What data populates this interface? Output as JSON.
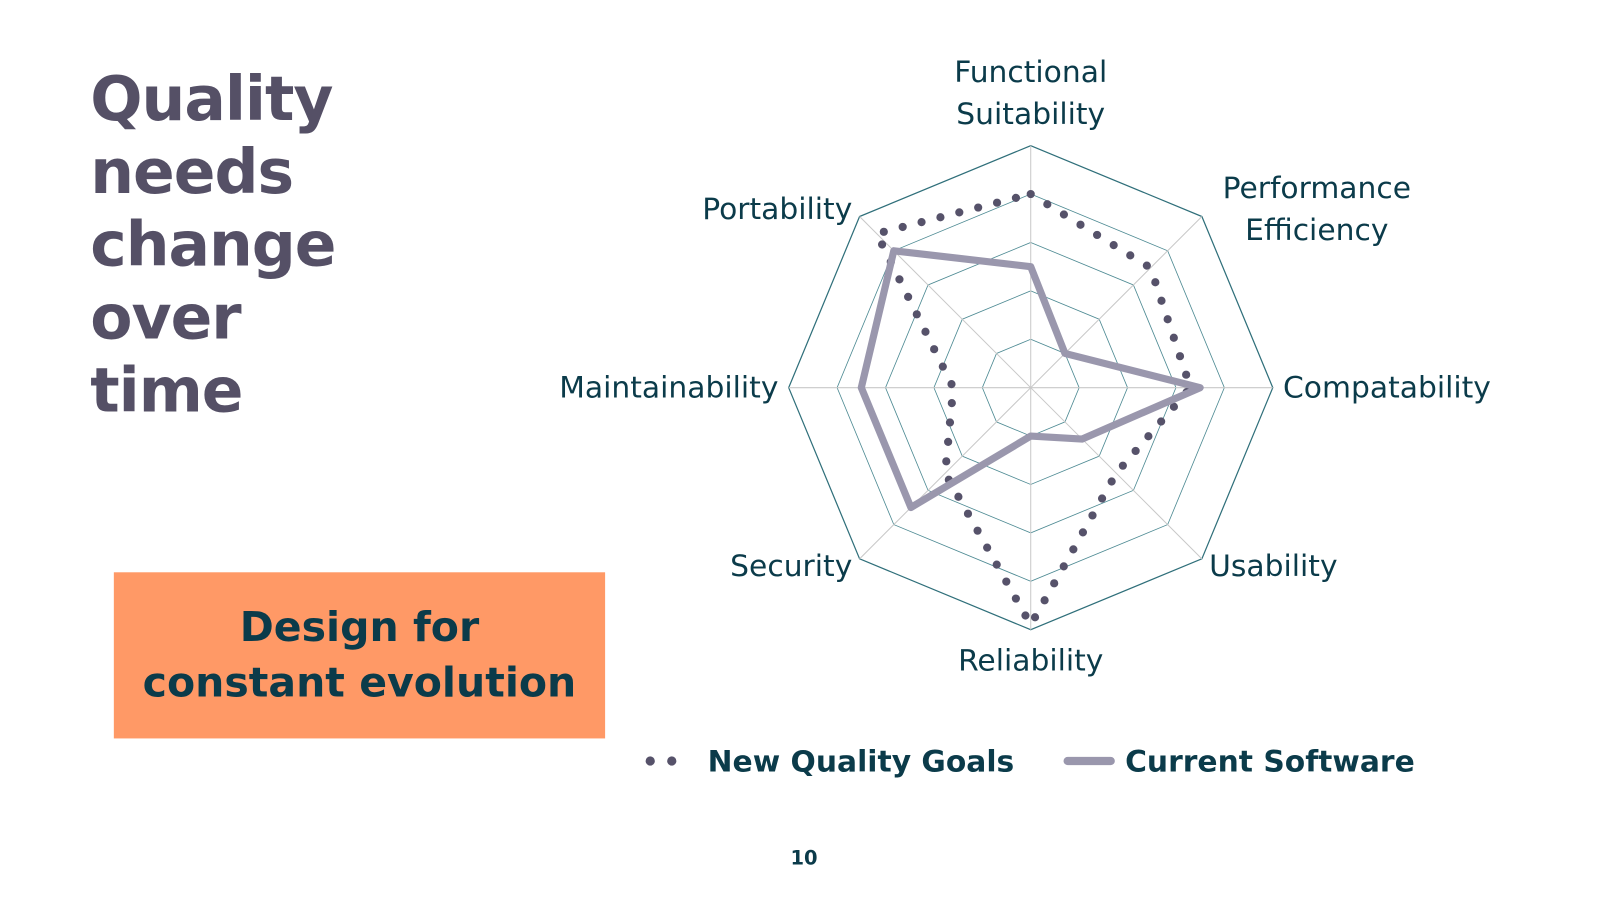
{
  "title": "Quality needs change over time",
  "callout": "Design for constant evolution",
  "page_number": "10",
  "chart_data": {
    "type": "radar",
    "categories": [
      "Functional Suitability",
      "Performance Efficiency",
      "Compatability",
      "Usability",
      "Reliability",
      "Security",
      "Maintainability",
      "Portability"
    ],
    "ylim": [
      0,
      5
    ],
    "yticks": [
      0,
      1,
      2,
      3,
      4,
      5
    ],
    "grid": true,
    "series": [
      {
        "name": "New Quality Goals",
        "color": "#56526a",
        "style": "dotted",
        "values": [
          4,
          3.5,
          3.3,
          2.5,
          4.9,
          2.5,
          1.6,
          4.5
        ]
      },
      {
        "name": "Current Software",
        "color": "#9a97ad",
        "style": "solid",
        "values": [
          2.5,
          1,
          3.5,
          1.5,
          1,
          3.5,
          3.5,
          4
        ]
      }
    ]
  }
}
